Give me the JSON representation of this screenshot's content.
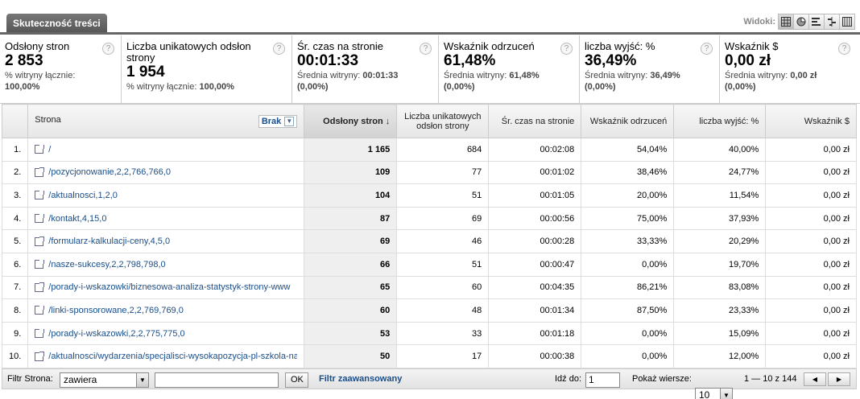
{
  "tab": {
    "title": "Skuteczność treści"
  },
  "views": {
    "label": "Widoki:",
    "icons": [
      "table-icon",
      "pie-icon",
      "bar-icon",
      "compare-icon",
      "pivot-icon"
    ]
  },
  "summary": [
    {
      "name": "Odsłony stron",
      "value": "2 853",
      "sub_label": "% witryny łącznie:",
      "sub_value": "100,00%"
    },
    {
      "name": "Liczba unikatowych odsłon strony",
      "value": "1 954",
      "sub_label": "% witryny łącznie:",
      "sub_value": "100,00%"
    },
    {
      "name": "Śr. czas na stronie",
      "value": "00:01:33",
      "sub_label": "Średnia witryny:",
      "sub_value": "00:01:33",
      "sub_extra": "(0,00%)"
    },
    {
      "name": "Wskaźnik odrzuceń",
      "value": "61,48%",
      "sub_label": "Średnia witryny:",
      "sub_value": "61,48%",
      "sub_extra": "(0,00%)"
    },
    {
      "name": "liczba wyjść: %",
      "value": "36,49%",
      "sub_label": "Średnia witryny:",
      "sub_value": "36,49%",
      "sub_extra": "(0,00%)"
    },
    {
      "name": "Wskaźnik $",
      "value": "0,00 zł",
      "sub_label": "Średnia witryny:",
      "sub_value": "0,00 zł",
      "sub_extra": "(0,00%)"
    }
  ],
  "help_glyph": "?",
  "table": {
    "headers": {
      "page": "Strona",
      "dimension_select": "Brak",
      "pageviews": "Odsłony stron",
      "unique": "Liczba unikatowych odsłon strony",
      "avg_time": "Śr. czas na stronie",
      "bounce": "Wskaźnik odrzuceń",
      "exits": "liczba wyjść: %",
      "dollar": "Wskaźnik $"
    },
    "rows": [
      {
        "num": "1.",
        "page": "/",
        "pageviews": "1 165",
        "unique": "684",
        "avg_time": "00:02:08",
        "bounce": "54,04%",
        "exits": "40,00%",
        "dollar": "0,00 zł"
      },
      {
        "num": "2.",
        "page": "/pozycjonowanie,2,2,766,766,0",
        "pageviews": "109",
        "unique": "77",
        "avg_time": "00:01:02",
        "bounce": "38,46%",
        "exits": "24,77%",
        "dollar": "0,00 zł"
      },
      {
        "num": "3.",
        "page": "/aktualnosci,1,2,0",
        "pageviews": "104",
        "unique": "51",
        "avg_time": "00:01:05",
        "bounce": "20,00%",
        "exits": "11,54%",
        "dollar": "0,00 zł"
      },
      {
        "num": "4.",
        "page": "/kontakt,4,15,0",
        "pageviews": "87",
        "unique": "69",
        "avg_time": "00:00:56",
        "bounce": "75,00%",
        "exits": "37,93%",
        "dollar": "0,00 zł"
      },
      {
        "num": "5.",
        "page": "/formularz-kalkulacji-ceny,4,5,0",
        "pageviews": "69",
        "unique": "46",
        "avg_time": "00:00:28",
        "bounce": "33,33%",
        "exits": "20,29%",
        "dollar": "0,00 zł"
      },
      {
        "num": "6.",
        "page": "/nasze-sukcesy,2,2,798,798,0",
        "pageviews": "66",
        "unique": "51",
        "avg_time": "00:00:47",
        "bounce": "0,00%",
        "exits": "19,70%",
        "dollar": "0,00 zł"
      },
      {
        "num": "7.",
        "page": "/porady-i-wskazowki/biznesowa-analiza-statystyk-strony-www",
        "pageviews": "65",
        "unique": "60",
        "avg_time": "00:04:35",
        "bounce": "86,21%",
        "exits": "83,08%",
        "dollar": "0,00 zł"
      },
      {
        "num": "8.",
        "page": "/linki-sponsorowane,2,2,769,769,0",
        "pageviews": "60",
        "unique": "48",
        "avg_time": "00:01:34",
        "bounce": "87,50%",
        "exits": "23,33%",
        "dollar": "0,00 zł"
      },
      {
        "num": "9.",
        "page": "/porady-i-wskazowki,2,2,775,775,0",
        "pageviews": "53",
        "unique": "33",
        "avg_time": "00:01:18",
        "bounce": "0,00%",
        "exits": "15,09%",
        "dollar": "0,00 zł"
      },
      {
        "num": "10.",
        "page": "/aktualnosci/wydarzenia/specjalisci-wysokapozycja-pl-szkola-na",
        "pageviews": "50",
        "unique": "17",
        "avg_time": "00:00:38",
        "bounce": "0,00%",
        "exits": "12,00%",
        "dollar": "0,00 zł"
      }
    ]
  },
  "filter": {
    "label": "Filtr Strona:",
    "condition": "zawiera",
    "value": "",
    "ok": "OK",
    "advanced": "Filtr zaawansowany",
    "goto_label": "Idź do:",
    "goto_value": "1",
    "rows_label": "Pokaż wiersze:",
    "rows_value": "10",
    "range": "1 — 10 z 144",
    "prev": "◀",
    "next": "▶"
  },
  "colors": {
    "link": "#1a4e8a",
    "tab": "#555555"
  }
}
